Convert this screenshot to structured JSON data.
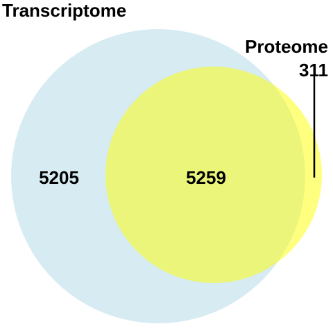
{
  "diagram": {
    "type": "venn",
    "sets": [
      {
        "id": "transcriptome",
        "label": "Transcriptome",
        "color": "#add8e6"
      },
      {
        "id": "proteome",
        "label": "Proteome",
        "color": "#ffff00"
      }
    ],
    "regions": {
      "transcriptome_only": "5205",
      "intersection": "5259",
      "proteome_only": "311"
    }
  }
}
